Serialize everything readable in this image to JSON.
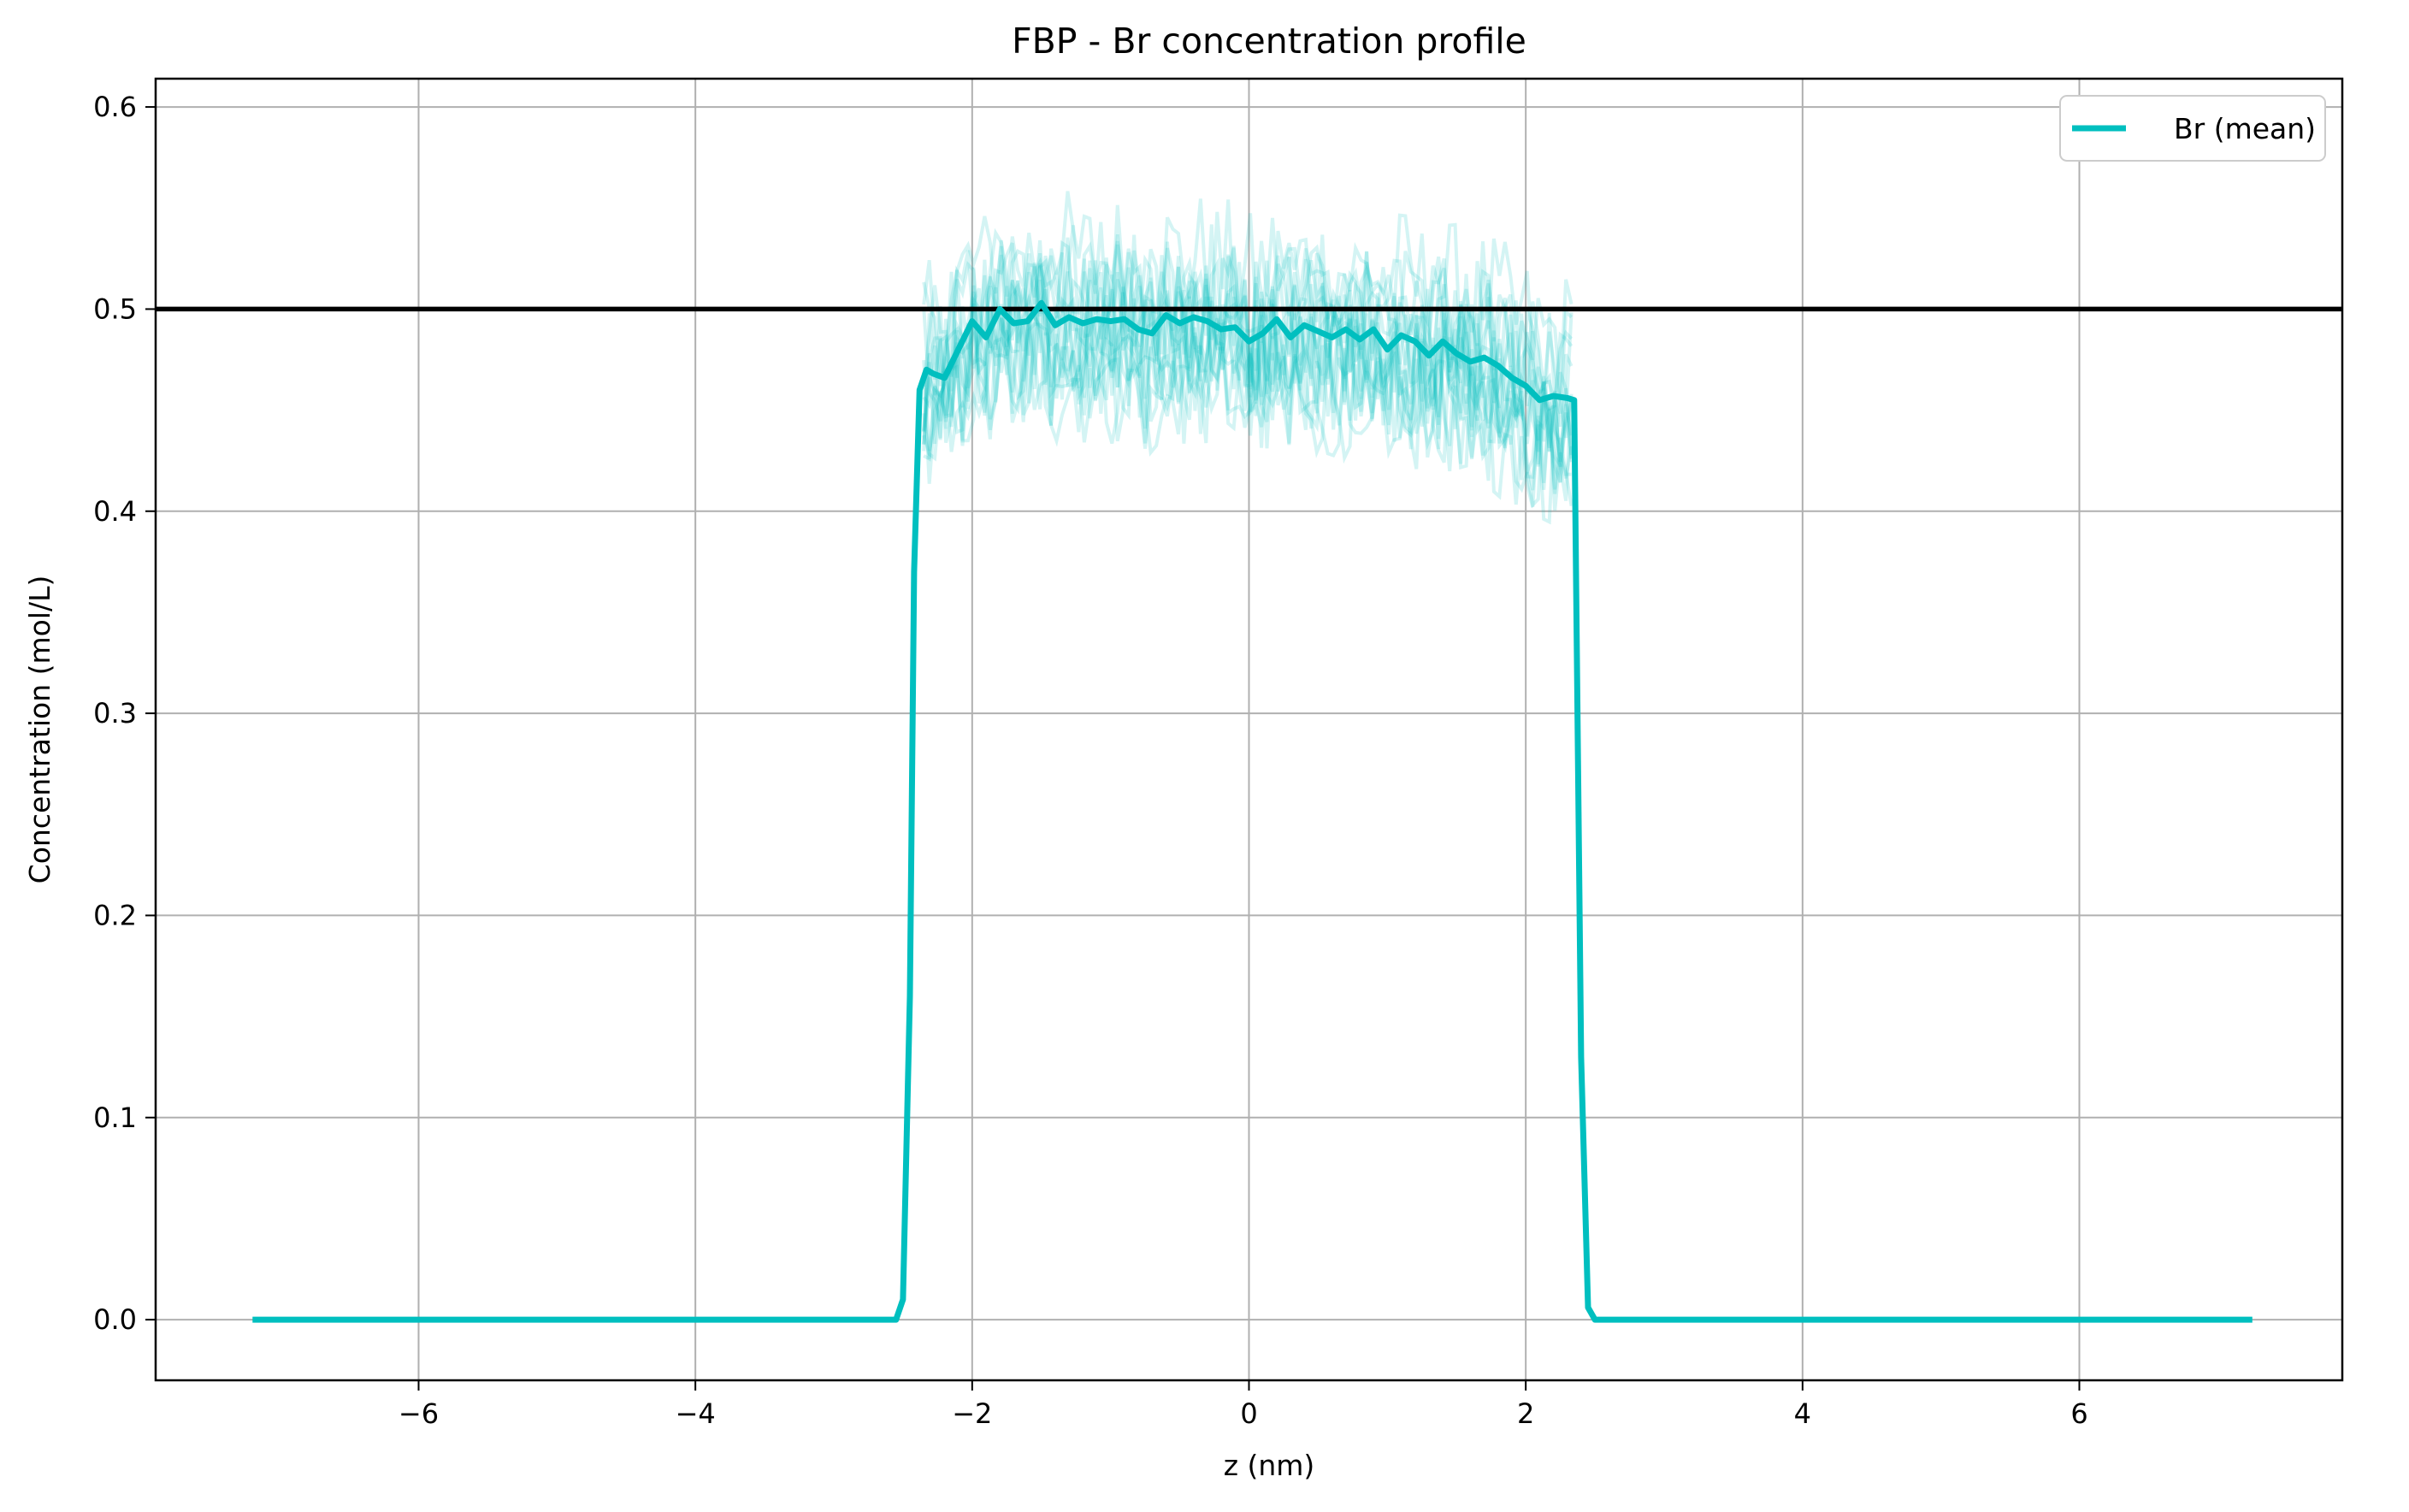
{
  "chart_data": {
    "type": "line",
    "title": "FBP - Br concentration profile",
    "xlabel": "z (nm)",
    "ylabel": "Concentration (mol/L)",
    "xlim": [
      -7.9,
      7.9
    ],
    "ylim": [
      -0.03,
      0.614
    ],
    "xticks": [
      -6,
      -4,
      -2,
      0,
      2,
      4,
      6
    ],
    "xtick_labels": [
      "−6",
      "−4",
      "−2",
      "0",
      "2",
      "4",
      "6"
    ],
    "yticks": [
      0.0,
      0.1,
      0.2,
      0.3,
      0.4,
      0.5,
      0.6
    ],
    "ytick_labels": [
      "0.0",
      "0.1",
      "0.2",
      "0.3",
      "0.4",
      "0.5",
      "0.6"
    ],
    "grid": true,
    "legend": {
      "placement": "top-right",
      "entries": [
        "Br (mean)"
      ]
    },
    "colors": {
      "mean": "#00bfbf",
      "replicas": "#00bfbf",
      "reference": "#000000",
      "grid": "#b0b0b0"
    },
    "reference_line": {
      "y": 0.5
    },
    "series": [
      {
        "name": "Br (mean)",
        "x": [
          -7.2,
          -2.55,
          -2.5,
          -2.45,
          -2.42,
          -2.38,
          -2.33,
          -2.28,
          -2.2,
          -2.1,
          -2.0,
          -1.9,
          -1.8,
          -1.7,
          -1.6,
          -1.5,
          -1.4,
          -1.3,
          -1.2,
          -1.1,
          -1.0,
          -0.9,
          -0.8,
          -0.7,
          -0.6,
          -0.5,
          -0.4,
          -0.3,
          -0.2,
          -0.1,
          0.0,
          0.1,
          0.2,
          0.3,
          0.4,
          0.5,
          0.6,
          0.7,
          0.8,
          0.9,
          1.0,
          1.1,
          1.2,
          1.3,
          1.4,
          1.5,
          1.6,
          1.7,
          1.8,
          1.9,
          2.0,
          2.1,
          2.2,
          2.3,
          2.35,
          2.4,
          2.45,
          2.5,
          2.55,
          7.25
        ],
        "y": [
          0.0,
          0.0,
          0.01,
          0.16,
          0.37,
          0.46,
          0.47,
          0.468,
          0.466,
          0.48,
          0.494,
          0.486,
          0.5,
          0.493,
          0.494,
          0.503,
          0.492,
          0.496,
          0.493,
          0.495,
          0.494,
          0.495,
          0.49,
          0.488,
          0.497,
          0.493,
          0.496,
          0.494,
          0.49,
          0.491,
          0.484,
          0.488,
          0.495,
          0.486,
          0.492,
          0.489,
          0.486,
          0.49,
          0.485,
          0.49,
          0.48,
          0.487,
          0.484,
          0.477,
          0.484,
          0.478,
          0.474,
          0.476,
          0.472,
          0.466,
          0.462,
          0.455,
          0.457,
          0.456,
          0.455,
          0.13,
          0.006,
          0.0,
          0.0,
          0.0
        ]
      }
    ],
    "replicas": {
      "count": 16,
      "x_range": [
        -2.35,
        2.35
      ],
      "y_range": [
        0.37,
        0.58
      ]
    }
  }
}
